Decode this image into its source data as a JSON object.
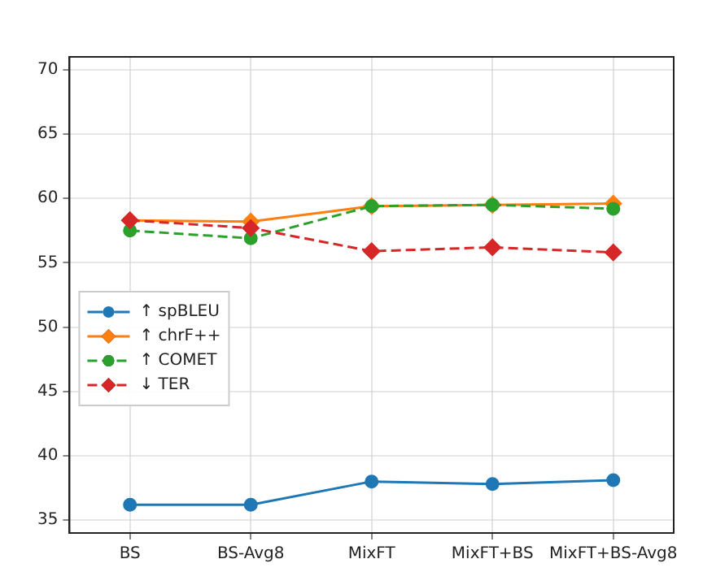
{
  "chart_data": {
    "type": "line",
    "categories": [
      "BS",
      "BS-Avg8",
      "MixFT",
      "MixFT+BS",
      "MixFT+BS-Avg8"
    ],
    "ylim": [
      34,
      71
    ],
    "yticks": [
      35,
      40,
      45,
      50,
      55,
      60,
      65,
      70
    ],
    "grid": true,
    "legend": "center left",
    "series": [
      {
        "name": "↑ spBLEU",
        "color": "#1f77b4",
        "marker": "circle",
        "line_style": "solid",
        "values": [
          36.2,
          36.2,
          38.0,
          37.8,
          38.1
        ]
      },
      {
        "name": "↑ chrF++",
        "color": "#ff7f0e",
        "marker": "diamond",
        "line_style": "solid",
        "values": [
          58.3,
          58.2,
          59.4,
          59.5,
          59.6
        ]
      },
      {
        "name": "↑ COMET",
        "color": "#2ca02c",
        "marker": "circle",
        "line_style": "dashed",
        "values": [
          57.5,
          56.9,
          59.4,
          59.5,
          59.2
        ]
      },
      {
        "name": "↓ TER",
        "color": "#d62728",
        "marker": "diamond",
        "line_style": "dashed",
        "values": [
          58.3,
          57.7,
          55.9,
          56.2,
          55.8
        ]
      }
    ]
  }
}
